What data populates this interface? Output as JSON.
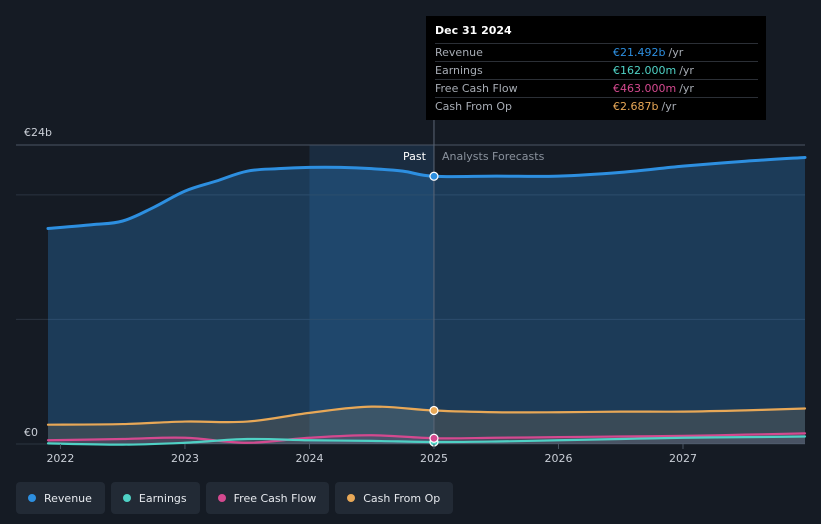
{
  "chart_data": {
    "type": "area",
    "y_axis": {
      "top_label": "€24b",
      "bottom_label": "€0",
      "ylim": [
        0,
        24
      ]
    },
    "x_axis": {
      "ticks": [
        "2022",
        "2023",
        "2024",
        "2025",
        "2026",
        "2027"
      ],
      "xlim": [
        2021.9,
        2027.98
      ]
    },
    "divider_x": 2025.0,
    "past_label": "Past",
    "forecast_label": "Analysts Forecasts",
    "series": [
      {
        "name": "Revenue",
        "color": "#2d8fe0",
        "x": [
          2021.9,
          2022.25,
          2022.5,
          2022.75,
          2023.0,
          2023.25,
          2023.5,
          2023.75,
          2024.0,
          2024.25,
          2024.5,
          2024.75,
          2025.0,
          2025.5,
          2026.0,
          2026.5,
          2027.0,
          2027.5,
          2027.98
        ],
        "y": [
          17.3,
          17.6,
          17.9,
          19.0,
          20.3,
          21.1,
          21.9,
          22.1,
          22.2,
          22.2,
          22.1,
          21.9,
          21.492,
          21.5,
          21.5,
          21.8,
          22.3,
          22.7,
          23.0
        ]
      },
      {
        "name": "Earnings",
        "color": "#4fd1c5",
        "x": [
          2021.9,
          2022.5,
          2023.0,
          2023.5,
          2024.0,
          2024.5,
          2025.0,
          2025.5,
          2026.0,
          2026.5,
          2027.0,
          2027.5,
          2027.98
        ],
        "y": [
          0.05,
          -0.05,
          0.1,
          0.4,
          0.3,
          0.25,
          0.162,
          0.2,
          0.3,
          0.4,
          0.5,
          0.55,
          0.6
        ]
      },
      {
        "name": "Free Cash Flow",
        "color": "#d4498f",
        "x": [
          2021.9,
          2022.5,
          2023.0,
          2023.5,
          2024.0,
          2024.5,
          2025.0,
          2025.5,
          2026.0,
          2026.5,
          2027.0,
          2027.5,
          2027.98
        ],
        "y": [
          0.3,
          0.4,
          0.5,
          0.1,
          0.5,
          0.7,
          0.463,
          0.5,
          0.55,
          0.6,
          0.65,
          0.75,
          0.85
        ]
      },
      {
        "name": "Cash From Op",
        "color": "#e8a857",
        "x": [
          2021.9,
          2022.5,
          2023.0,
          2023.5,
          2024.0,
          2024.5,
          2025.0,
          2025.5,
          2026.0,
          2026.5,
          2027.0,
          2027.5,
          2027.98
        ],
        "y": [
          1.55,
          1.6,
          1.8,
          1.8,
          2.5,
          3.0,
          2.687,
          2.55,
          2.55,
          2.6,
          2.6,
          2.7,
          2.85
        ]
      }
    ]
  },
  "tooltip": {
    "date": "Dec 31 2024",
    "unit": "/yr",
    "rows": [
      {
        "label": "Revenue",
        "value": "€21.492b",
        "color": "#2d8fe0"
      },
      {
        "label": "Earnings",
        "value": "€162.000m",
        "color": "#4fd1c5"
      },
      {
        "label": "Free Cash Flow",
        "value": "€463.000m",
        "color": "#d4498f"
      },
      {
        "label": "Cash From Op",
        "value": "€2.687b",
        "color": "#e8a857"
      }
    ]
  },
  "legend": [
    {
      "label": "Revenue",
      "color": "#2d8fe0"
    },
    {
      "label": "Earnings",
      "color": "#4fd1c5"
    },
    {
      "label": "Free Cash Flow",
      "color": "#d4498f"
    },
    {
      "label": "Cash From Op",
      "color": "#e8a857"
    }
  ]
}
